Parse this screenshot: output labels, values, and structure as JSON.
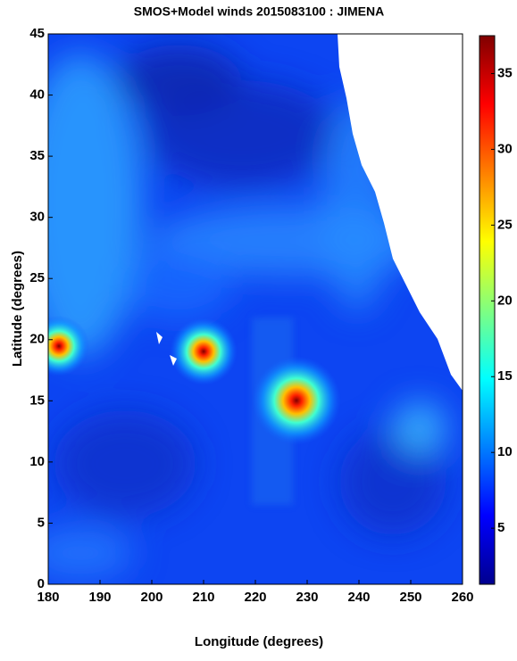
{
  "chart_data": {
    "type": "heatmap",
    "title": "SMOS+Model winds 2015083100 : JIMENA",
    "x_label": "Longitude (degrees)",
    "y_label": "Latitude (degrees)",
    "xlim": [
      180,
      260
    ],
    "xticks": [
      180,
      190,
      200,
      210,
      220,
      230,
      240,
      250,
      260
    ],
    "ylim": [
      0,
      45
    ],
    "yticks": [
      0,
      5,
      10,
      15,
      20,
      25,
      30,
      35,
      40,
      45
    ],
    "colorbar": {
      "lim": [
        1.3,
        37.5
      ],
      "ticks": [
        5,
        10,
        15,
        20,
        25,
        30,
        35
      ],
      "colormap": "jet"
    }
  }
}
